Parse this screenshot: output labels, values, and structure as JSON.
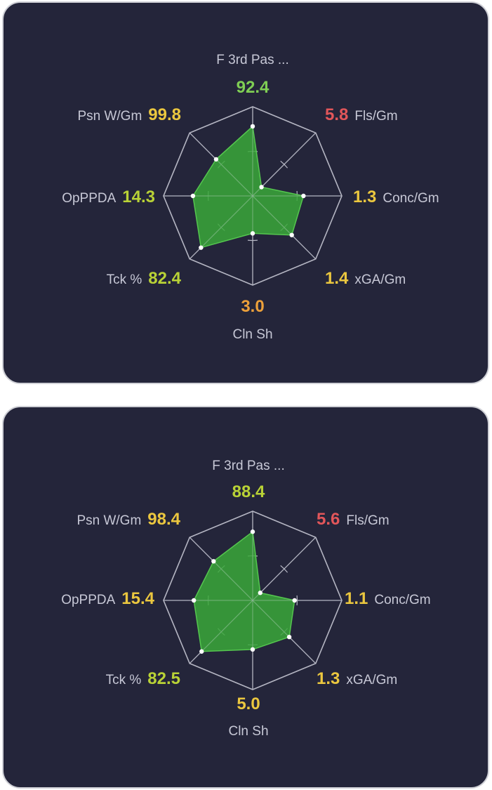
{
  "colors": {
    "card_bg": "#24253a",
    "grid": "#b5b6c3",
    "fill": "#3aa83a",
    "stroke": "#55c64f",
    "label": "#c7c8d6",
    "value_green": "#7fce54",
    "value_lime": "#b9d236",
    "value_yellow": "#ebc73f",
    "value_orange": "#eca03a",
    "value_red": "#e2565a"
  },
  "cards": [
    {
      "metrics": [
        {
          "label": "F 3rd Pas ...",
          "value": "92.4",
          "color": "#7fce54",
          "level": 0.78
        },
        {
          "label": "Fls/Gm",
          "value": "5.8",
          "color": "#e2565a",
          "level": 0.14
        },
        {
          "label": "Conc/Gm",
          "value": "1.3",
          "color": "#ebc73f",
          "level": 0.57
        },
        {
          "label": "xGA/Gm",
          "value": "1.4",
          "color": "#ebc73f",
          "level": 0.62
        },
        {
          "label": "Cln Sh",
          "value": "3.0",
          "color": "#eca03a",
          "level": 0.42
        },
        {
          "label": "Tck %",
          "value": "82.4",
          "color": "#b9d236",
          "level": 0.82
        },
        {
          "label": "OpPPDA",
          "value": "14.3",
          "color": "#b9d236",
          "level": 0.67
        },
        {
          "label": "Psn W/Gm",
          "value": "99.8",
          "color": "#ebc73f",
          "level": 0.58
        }
      ]
    },
    {
      "metrics": [
        {
          "label": "F 3rd Pas ...",
          "value": "88.4",
          "color": "#b9d236",
          "level": 0.77
        },
        {
          "label": "Fls/Gm",
          "value": "5.6",
          "color": "#e2565a",
          "level": 0.12
        },
        {
          "label": "Conc/Gm",
          "value": "1.1",
          "color": "#ebc73f",
          "level": 0.47
        },
        {
          "label": "xGA/Gm",
          "value": "1.3",
          "color": "#ebc73f",
          "level": 0.58
        },
        {
          "label": "Cln Sh",
          "value": "5.0",
          "color": "#ebc73f",
          "level": 0.55
        },
        {
          "label": "Tck %",
          "value": "82.5",
          "color": "#b9d236",
          "level": 0.81
        },
        {
          "label": "OpPPDA",
          "value": "15.4",
          "color": "#ebc73f",
          "level": 0.66
        },
        {
          "label": "Psn W/Gm",
          "value": "98.4",
          "color": "#ebc73f",
          "level": 0.62
        }
      ]
    }
  ]
}
